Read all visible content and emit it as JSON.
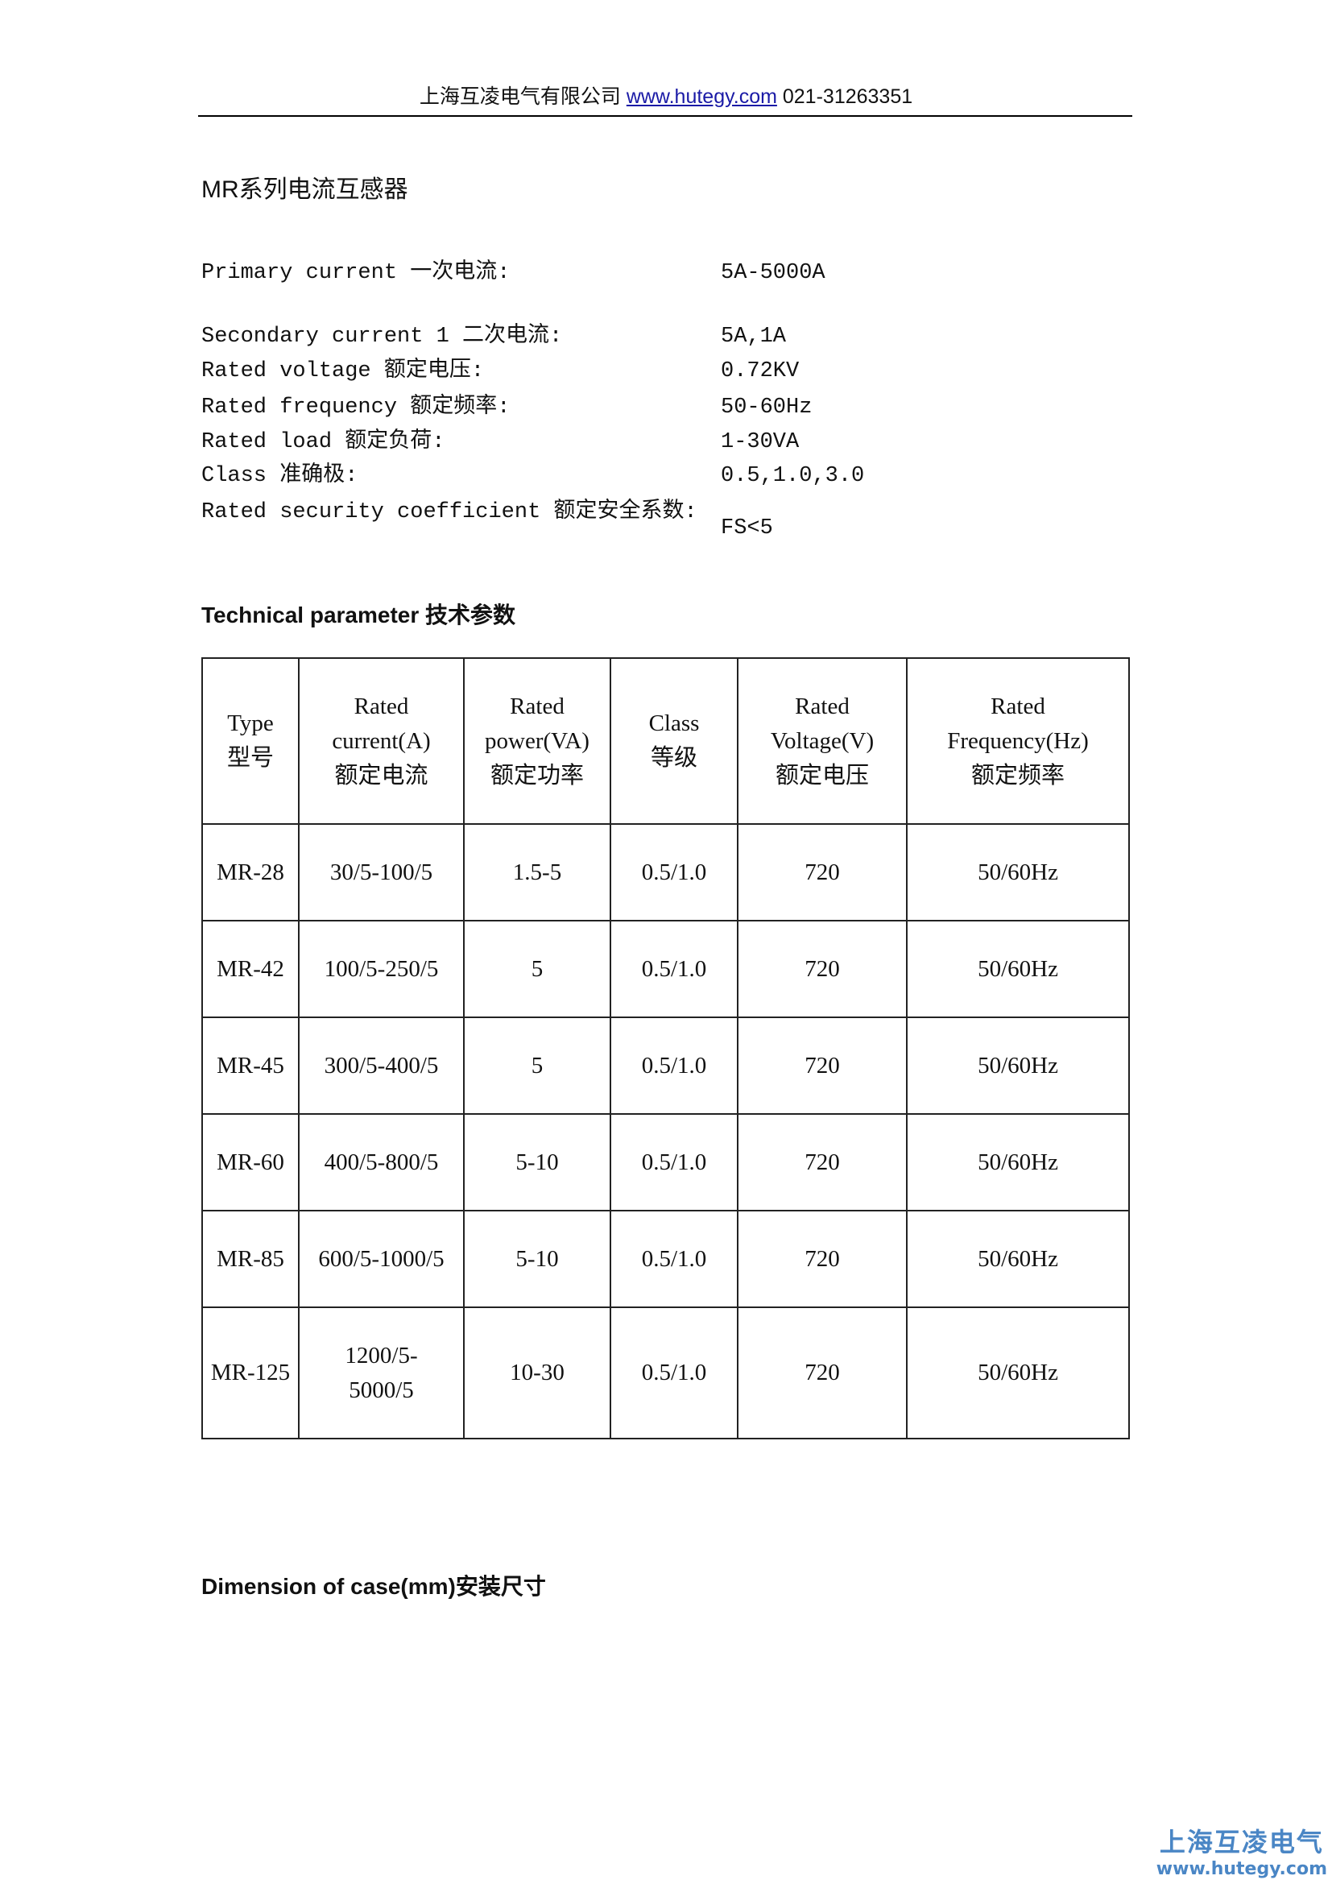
{
  "header": {
    "company": "上海互凌电气有限公司",
    "url": "www.hutegy.com",
    "phone": "021-31263351"
  },
  "title": "MR系列电流互感器",
  "specs": [
    {
      "label": "Primary current 一次电流:",
      "value": "5A-5000A"
    },
    {
      "label": "Secondary current 1 二次电流:",
      "value": "5A,1A"
    },
    {
      "label": "Rated  voltage 额定电压:",
      "value": "0.72KV"
    },
    {
      "label": "Rated  frequency 额定频率:",
      "value": "50-60Hz"
    },
    {
      "label": "Rated load 额定负荷:",
      "value": "1-30VA"
    },
    {
      "label": "Class 准确极:",
      "value": "0.5,1.0,3.0"
    },
    {
      "label": "Rated security coefficient 额定安全系数:",
      "value": "FS<5"
    }
  ],
  "tech_heading": "Technical parameter 技术参数",
  "table": {
    "headers": [
      [
        "Type",
        "型号"
      ],
      [
        "Rated",
        "current(A)",
        "额定电流"
      ],
      [
        "Rated",
        "power(VA)",
        "额定功率"
      ],
      [
        "Class",
        "等级"
      ],
      [
        "Rated",
        "Voltage(V)",
        "额定电压"
      ],
      [
        "Rated",
        "Frequency(Hz)",
        "额定频率"
      ]
    ],
    "rows": [
      [
        "MR-28",
        "30/5-100/5",
        "1.5-5",
        "0.5/1.0",
        "720",
        "50/60Hz"
      ],
      [
        "MR-42",
        "100/5-250/5",
        "5",
        "0.5/1.0",
        "720",
        "50/60Hz"
      ],
      [
        "MR-45",
        "300/5-400/5",
        "5",
        "0.5/1.0",
        "720",
        "50/60Hz"
      ],
      [
        "MR-60",
        "400/5-800/5",
        "5-10",
        "0.5/1.0",
        "720",
        "50/60Hz"
      ],
      [
        "MR-85",
        "600/5-1000/5",
        "5-10",
        "0.5/1.0",
        "720",
        "50/60Hz"
      ],
      [
        "MR-125",
        "1200/5-5000/5",
        "10-30",
        "0.5/1.0",
        "720",
        "50/60Hz"
      ]
    ]
  },
  "dimension_heading": "Dimension of case(mm)安装尺寸",
  "logo": {
    "cn": "上海互凌电气",
    "url": "www.hutegy.com",
    "color": "#4a86c5"
  }
}
